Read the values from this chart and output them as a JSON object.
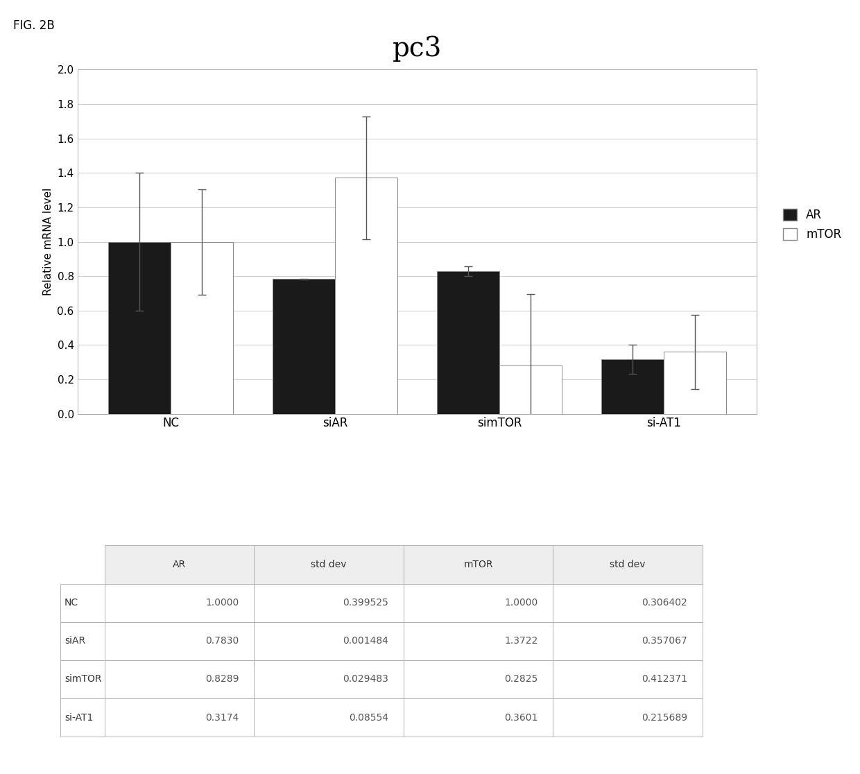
{
  "title": "pc3",
  "fig_label": "FIG. 2B",
  "ylabel": "Relative mRNA level",
  "categories": [
    "NC",
    "siAR",
    "simTOR",
    "si-AT1"
  ],
  "AR_values": [
    1.0,
    0.783,
    0.8289,
    0.3174
  ],
  "AR_std": [
    0.399525,
    0.001484,
    0.029483,
    0.08554
  ],
  "mTOR_values": [
    1.0,
    1.3722,
    0.2825,
    0.3601
  ],
  "mTOR_std": [
    0.306402,
    0.357067,
    0.412371,
    0.215689
  ],
  "ylim": [
    0.0,
    2.0
  ],
  "yticks": [
    0.0,
    0.2,
    0.4,
    0.6,
    0.8,
    1.0,
    1.2,
    1.4,
    1.6,
    1.8,
    2.0
  ],
  "AR_color": "#1a1a1a",
  "mTOR_color": "#ffffff",
  "bar_edge_color": "#888888",
  "bar_width": 0.38,
  "table_data": [
    [
      "NC",
      "1.0000",
      "0.399525",
      "1.0000",
      "0.306402"
    ],
    [
      "siAR",
      "0.7830",
      "0.001484",
      "1.3722",
      "0.357067"
    ],
    [
      "simTOR",
      "0.8289",
      "0.029483",
      "0.2825",
      "0.412371"
    ],
    [
      "si-AT1",
      "0.3174",
      "0.08554",
      "0.3601",
      "0.215689"
    ]
  ],
  "table_col_headers": [
    "",
    "AR",
    "std dev",
    "mTOR",
    "std dev"
  ],
  "chart_bg_color": "#ffffff",
  "fig_bg_color": "#ffffff",
  "grid_color": "#cccccc",
  "spine_color": "#aaaaaa",
  "title_fontsize": 28,
  "axis_label_fontsize": 11,
  "tick_fontsize": 11,
  "legend_fontsize": 12,
  "table_fontsize": 10,
  "fig_label_fontsize": 12
}
